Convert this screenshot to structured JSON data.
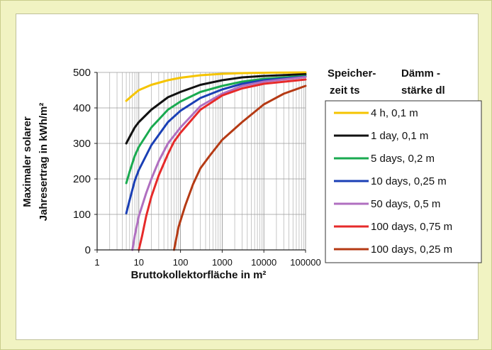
{
  "chart_data": {
    "type": "line",
    "xscale": "log",
    "xlim": [
      1,
      100000
    ],
    "ylim": [
      0,
      500
    ],
    "xlabel": "Bruttokollektorfläche in m²",
    "ylabel_line1": "Maximaler solarer",
    "ylabel_line2": "Jahresertrag in kWh/m²",
    "xticks": [
      "1",
      "10",
      "100",
      "1000",
      "10000",
      "100000"
    ],
    "yticks": [
      "0",
      "100",
      "200",
      "300",
      "400",
      "500"
    ],
    "grid": true,
    "legend_position": "right",
    "legend_header_col1_line1": "Speicher-",
    "legend_header_col1_line2": "zeit ts",
    "legend_header_col2_line1": "Dämm -",
    "legend_header_col2_line2": "stärke dl",
    "series": [
      {
        "name": "4 h, 0,1 m",
        "color": "#f5c400",
        "points": [
          [
            5,
            420
          ],
          [
            7,
            435
          ],
          [
            10,
            450
          ],
          [
            20,
            465
          ],
          [
            50,
            478
          ],
          [
            100,
            485
          ],
          [
            300,
            492
          ],
          [
            1000,
            496
          ],
          [
            3000,
            498
          ],
          [
            10000,
            499
          ],
          [
            100000,
            500
          ]
        ]
      },
      {
        "name": "1 day, 0,1 m",
        "color": "#111111",
        "points": [
          [
            5,
            300
          ],
          [
            6,
            318
          ],
          [
            8,
            345
          ],
          [
            10,
            360
          ],
          [
            20,
            395
          ],
          [
            50,
            430
          ],
          [
            100,
            445
          ],
          [
            300,
            465
          ],
          [
            1000,
            478
          ],
          [
            3000,
            486
          ],
          [
            10000,
            490
          ],
          [
            100000,
            495
          ]
        ]
      },
      {
        "name": "5 days, 0,2 m",
        "color": "#1aaa50",
        "points": [
          [
            5,
            188
          ],
          [
            6,
            220
          ],
          [
            8,
            265
          ],
          [
            10,
            290
          ],
          [
            20,
            345
          ],
          [
            50,
            395
          ],
          [
            100,
            418
          ],
          [
            300,
            445
          ],
          [
            1000,
            462
          ],
          [
            3000,
            474
          ],
          [
            10000,
            482
          ],
          [
            100000,
            490
          ]
        ]
      },
      {
        "name": "10 days, 0,25 m",
        "color": "#1a3fb5",
        "points": [
          [
            5,
            103
          ],
          [
            6,
            140
          ],
          [
            8,
            195
          ],
          [
            10,
            225
          ],
          [
            20,
            295
          ],
          [
            50,
            360
          ],
          [
            100,
            392
          ],
          [
            300,
            428
          ],
          [
            1000,
            452
          ],
          [
            3000,
            468
          ],
          [
            10000,
            478
          ],
          [
            100000,
            488
          ]
        ]
      },
      {
        "name": "50 days, 0,5 m",
        "color": "#b06fc0",
        "points": [
          [
            7,
            0
          ],
          [
            8,
            40
          ],
          [
            10,
            95
          ],
          [
            15,
            160
          ],
          [
            20,
            200
          ],
          [
            30,
            250
          ],
          [
            50,
            300
          ],
          [
            100,
            345
          ],
          [
            300,
            405
          ],
          [
            1000,
            440
          ],
          [
            3000,
            462
          ],
          [
            10000,
            474
          ],
          [
            100000,
            487
          ]
        ]
      },
      {
        "name": "100 days, 0,75 m",
        "color": "#e62a2a",
        "points": [
          [
            10,
            0
          ],
          [
            12,
            40
          ],
          [
            15,
            95
          ],
          [
            20,
            150
          ],
          [
            30,
            210
          ],
          [
            50,
            270
          ],
          [
            70,
            305
          ],
          [
            100,
            330
          ],
          [
            300,
            395
          ],
          [
            1000,
            435
          ],
          [
            3000,
            455
          ],
          [
            10000,
            468
          ],
          [
            100000,
            480
          ]
        ]
      },
      {
        "name": "100 days, 0,25 m",
        "color": "#b53a14",
        "points": [
          [
            70,
            0
          ],
          [
            90,
            65
          ],
          [
            130,
            125
          ],
          [
            200,
            185
          ],
          [
            300,
            230
          ],
          [
            500,
            265
          ],
          [
            1000,
            310
          ],
          [
            3000,
            360
          ],
          [
            10000,
            410
          ],
          [
            30000,
            440
          ],
          [
            100000,
            462
          ]
        ]
      }
    ]
  }
}
